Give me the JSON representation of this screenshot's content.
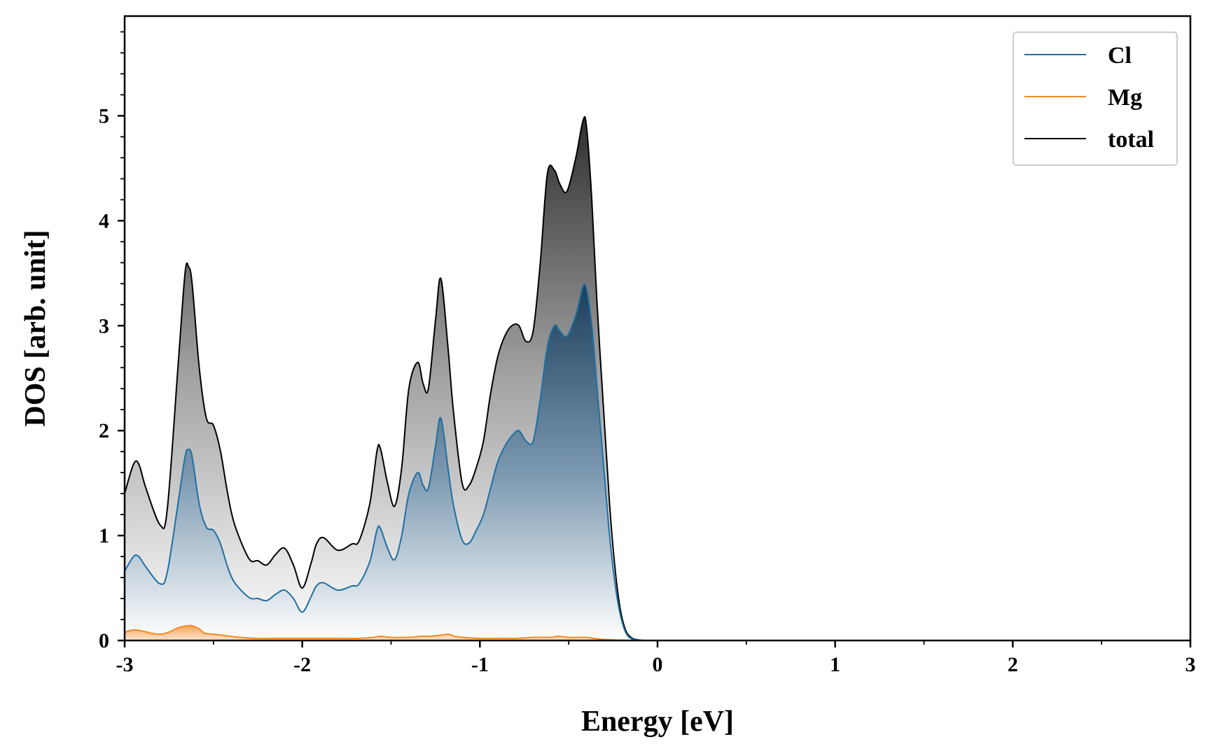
{
  "chart_data": {
    "type": "area",
    "xlabel": "Energy [eV]",
    "ylabel": "DOS [arb. unit]",
    "xlim": [
      -3,
      3
    ],
    "ylim": [
      0,
      5.95
    ],
    "xticks": [
      -3,
      -2,
      -1,
      0,
      1,
      2,
      3
    ],
    "yticks": [
      0,
      1,
      2,
      3,
      4,
      5
    ],
    "legend_position": "top-right",
    "grid": false,
    "series": [
      {
        "name": "total",
        "color": "#000000",
        "fill": "gray-gradient",
        "x": [
          -3.0,
          -2.95,
          -2.92,
          -2.88,
          -2.8,
          -2.76,
          -2.7,
          -2.66,
          -2.64,
          -2.62,
          -2.58,
          -2.54,
          -2.5,
          -2.46,
          -2.42,
          -2.38,
          -2.3,
          -2.25,
          -2.2,
          -2.15,
          -2.1,
          -2.05,
          -2.0,
          -1.95,
          -1.92,
          -1.88,
          -1.8,
          -1.72,
          -1.68,
          -1.62,
          -1.58,
          -1.56,
          -1.52,
          -1.48,
          -1.44,
          -1.4,
          -1.35,
          -1.32,
          -1.29,
          -1.25,
          -1.22,
          -1.18,
          -1.15,
          -1.1,
          -1.06,
          -1.02,
          -0.98,
          -0.94,
          -0.9,
          -0.86,
          -0.82,
          -0.78,
          -0.74,
          -0.7,
          -0.66,
          -0.62,
          -0.58,
          -0.55,
          -0.51,
          -0.46,
          -0.42,
          -0.4,
          -0.37,
          -0.34,
          -0.3,
          -0.27,
          -0.24,
          -0.21,
          -0.18,
          -0.15,
          -0.12,
          -0.08,
          0.0,
          3.0
        ],
        "y": [
          1.4,
          1.68,
          1.68,
          1.45,
          1.1,
          1.25,
          2.6,
          3.5,
          3.56,
          3.4,
          2.6,
          2.12,
          2.05,
          1.8,
          1.4,
          1.1,
          0.78,
          0.76,
          0.72,
          0.82,
          0.88,
          0.72,
          0.5,
          0.74,
          0.92,
          0.98,
          0.86,
          0.92,
          0.95,
          1.3,
          1.8,
          1.83,
          1.5,
          1.28,
          1.65,
          2.4,
          2.65,
          2.45,
          2.4,
          3.05,
          3.45,
          2.8,
          2.2,
          1.5,
          1.48,
          1.65,
          1.9,
          2.35,
          2.7,
          2.9,
          3.0,
          3.0,
          2.85,
          2.95,
          3.6,
          4.45,
          4.48,
          4.35,
          4.28,
          4.6,
          4.95,
          4.9,
          4.2,
          3.2,
          2.1,
          1.3,
          0.7,
          0.3,
          0.1,
          0.03,
          0.01,
          0.0,
          0.0,
          0.0
        ]
      },
      {
        "name": "Cl",
        "color": "#1f6fa3",
        "fill": "blue-gradient",
        "x": [
          -3.0,
          -2.95,
          -2.92,
          -2.88,
          -2.8,
          -2.76,
          -2.7,
          -2.66,
          -2.64,
          -2.62,
          -2.58,
          -2.54,
          -2.5,
          -2.46,
          -2.42,
          -2.38,
          -2.3,
          -2.25,
          -2.2,
          -2.15,
          -2.1,
          -2.05,
          -2.0,
          -1.95,
          -1.92,
          -1.88,
          -1.8,
          -1.72,
          -1.68,
          -1.62,
          -1.58,
          -1.56,
          -1.52,
          -1.48,
          -1.44,
          -1.4,
          -1.35,
          -1.32,
          -1.29,
          -1.25,
          -1.22,
          -1.18,
          -1.15,
          -1.1,
          -1.06,
          -1.02,
          -0.98,
          -0.94,
          -0.9,
          -0.86,
          -0.82,
          -0.78,
          -0.74,
          -0.7,
          -0.66,
          -0.62,
          -0.58,
          -0.55,
          -0.51,
          -0.46,
          -0.42,
          -0.4,
          -0.37,
          -0.34,
          -0.3,
          -0.27,
          -0.24,
          -0.21,
          -0.18,
          -0.15,
          -0.12,
          -0.08,
          0.0,
          3.0
        ],
        "y": [
          0.66,
          0.8,
          0.8,
          0.7,
          0.54,
          0.65,
          1.3,
          1.75,
          1.82,
          1.75,
          1.3,
          1.08,
          1.05,
          0.92,
          0.7,
          0.55,
          0.41,
          0.4,
          0.38,
          0.44,
          0.48,
          0.4,
          0.27,
          0.42,
          0.52,
          0.55,
          0.48,
          0.52,
          0.54,
          0.75,
          1.05,
          1.07,
          0.88,
          0.77,
          1.0,
          1.4,
          1.6,
          1.48,
          1.45,
          1.85,
          2.12,
          1.65,
          1.3,
          0.96,
          0.93,
          1.05,
          1.2,
          1.45,
          1.7,
          1.85,
          1.95,
          2.0,
          1.9,
          1.9,
          2.3,
          2.8,
          3.0,
          2.95,
          2.9,
          3.1,
          3.37,
          3.35,
          3.0,
          2.4,
          1.6,
          1.0,
          0.55,
          0.25,
          0.08,
          0.02,
          0.01,
          0.0,
          0.0,
          0.0
        ]
      },
      {
        "name": "Mg",
        "color": "#f58a1f",
        "fill": "orange-gradient",
        "x": [
          -3.0,
          -2.95,
          -2.9,
          -2.85,
          -2.8,
          -2.75,
          -2.7,
          -2.65,
          -2.62,
          -2.58,
          -2.55,
          -2.5,
          -2.45,
          -2.35,
          -2.25,
          -2.15,
          -2.05,
          -2.0,
          -1.9,
          -1.8,
          -1.7,
          -1.6,
          -1.56,
          -1.5,
          -1.4,
          -1.33,
          -1.28,
          -1.22,
          -1.18,
          -1.14,
          -1.1,
          -1.0,
          -0.9,
          -0.8,
          -0.7,
          -0.6,
          -0.56,
          -0.5,
          -0.45,
          -0.4,
          -0.36,
          -0.3,
          -0.24,
          -0.18,
          -0.1,
          0.0,
          3.0
        ],
        "y": [
          0.08,
          0.1,
          0.09,
          0.07,
          0.06,
          0.08,
          0.12,
          0.14,
          0.14,
          0.11,
          0.07,
          0.06,
          0.05,
          0.03,
          0.02,
          0.02,
          0.02,
          0.02,
          0.02,
          0.02,
          0.02,
          0.03,
          0.04,
          0.03,
          0.03,
          0.04,
          0.04,
          0.05,
          0.06,
          0.04,
          0.03,
          0.02,
          0.02,
          0.02,
          0.03,
          0.03,
          0.04,
          0.03,
          0.03,
          0.03,
          0.02,
          0.01,
          0.005,
          0.002,
          0.0,
          0.0,
          0.0
        ]
      }
    ],
    "legend": [
      {
        "name": "Cl",
        "color": "#1f6fa3"
      },
      {
        "name": "Mg",
        "color": "#f58a1f"
      },
      {
        "name": "total",
        "color": "#000000"
      }
    ]
  }
}
